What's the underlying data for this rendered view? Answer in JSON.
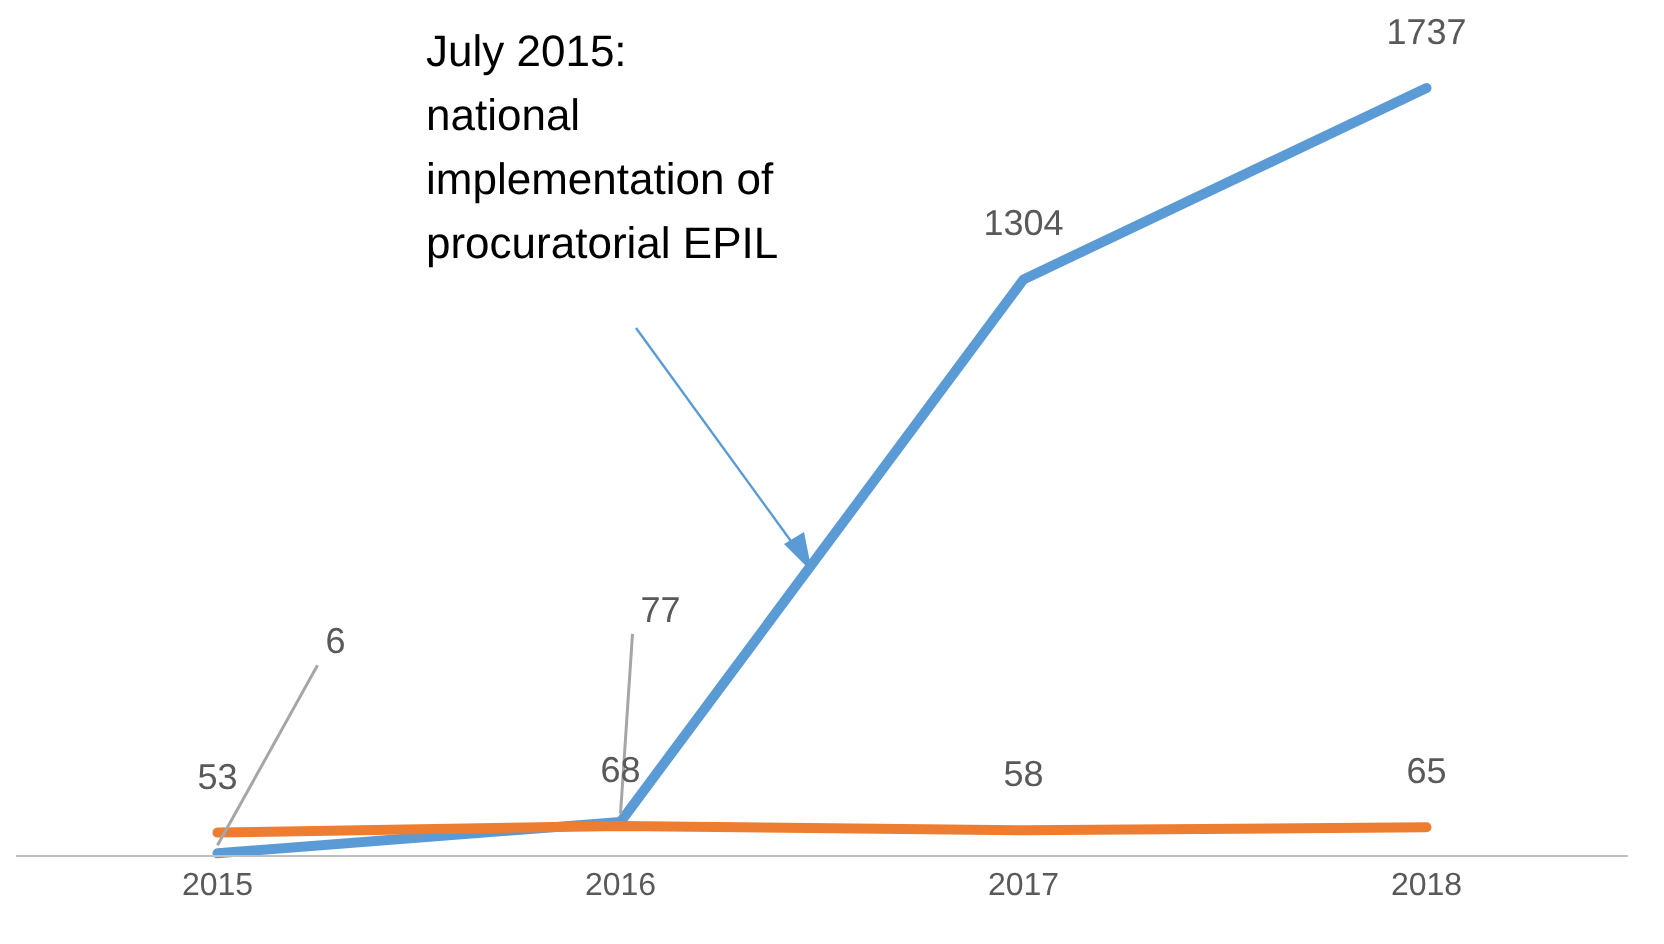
{
  "chart_data": {
    "type": "line",
    "categories": [
      "2015",
      "2016",
      "2017",
      "2018"
    ],
    "series": [
      {
        "color": "#5b9bd5",
        "values": [
          6,
          77,
          1304,
          1737
        ],
        "value_labels": [
          null,
          null,
          "1304",
          "1737"
        ]
      },
      {
        "color": "#ed7d31",
        "values": [
          53,
          68,
          58,
          65
        ],
        "value_labels": [
          "53",
          "68",
          "58",
          "65"
        ]
      }
    ],
    "marker": "none",
    "line_style": "solid",
    "annotations": [
      "July 2015:\nnational\nimplementation of\nprocuratorial EPIL",
      {
        "text": "6",
        "x": "2015",
        "y": 6
      },
      {
        "text": "77",
        "x": "2016",
        "y": 77
      }
    ]
  }
}
